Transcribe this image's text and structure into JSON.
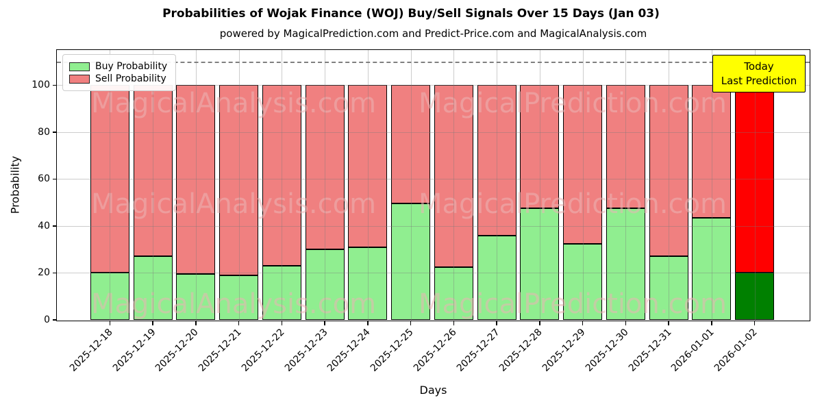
{
  "chart_data": {
    "type": "bar",
    "stacked": true,
    "title": "Probabilities of Wojak Finance (WOJ) Buy/Sell Signals Over 15 Days (Jan 03)",
    "subtitle": "powered by MagicalPrediction.com and Predict-Price.com and MagicalAnalysis.com",
    "xlabel": "Days",
    "ylabel": "Probability",
    "categories": [
      "2025-12-18",
      "2025-12-19",
      "2025-12-20",
      "2025-12-21",
      "2025-12-22",
      "2025-12-23",
      "2025-12-24",
      "2025-12-25",
      "2025-12-26",
      "2025-12-27",
      "2025-12-28",
      "2025-12-29",
      "2025-12-30",
      "2025-12-31",
      "2026-01-01",
      "2026-01-02"
    ],
    "series": [
      {
        "name": "Buy Probability",
        "color": "#90EE90",
        "edge_color": "#000000",
        "values": [
          20,
          27,
          19.5,
          19,
          23,
          30,
          31,
          49.5,
          22.5,
          36,
          47.5,
          32.5,
          47.5,
          27,
          43.5,
          20
        ]
      },
      {
        "name": "Sell Probability",
        "color": "#F08080",
        "edge_color": "#000000",
        "values": [
          80,
          73,
          80.5,
          81,
          77,
          70,
          69,
          50.5,
          77.5,
          64,
          52.5,
          67.5,
          52.5,
          73,
          56.5,
          80
        ]
      }
    ],
    "bar_total": 100,
    "highlight_last_bar": {
      "buy_color": "#008000",
      "sell_color": "#FF0000"
    },
    "ylim": [
      0,
      115
    ],
    "yticks": [
      0,
      20,
      40,
      60,
      80,
      100
    ],
    "grid": true,
    "legend_position": "upper-left",
    "dashed_hline": {
      "y": 110,
      "color": "#7f7f7f"
    },
    "annotation": {
      "lines": [
        "Today",
        "Last Prediction"
      ],
      "bg": "#FFFF00",
      "border": "#000000"
    },
    "watermarks": {
      "left": "MagicalAnalysis.com",
      "right": "MagicalPrediction.com"
    }
  }
}
